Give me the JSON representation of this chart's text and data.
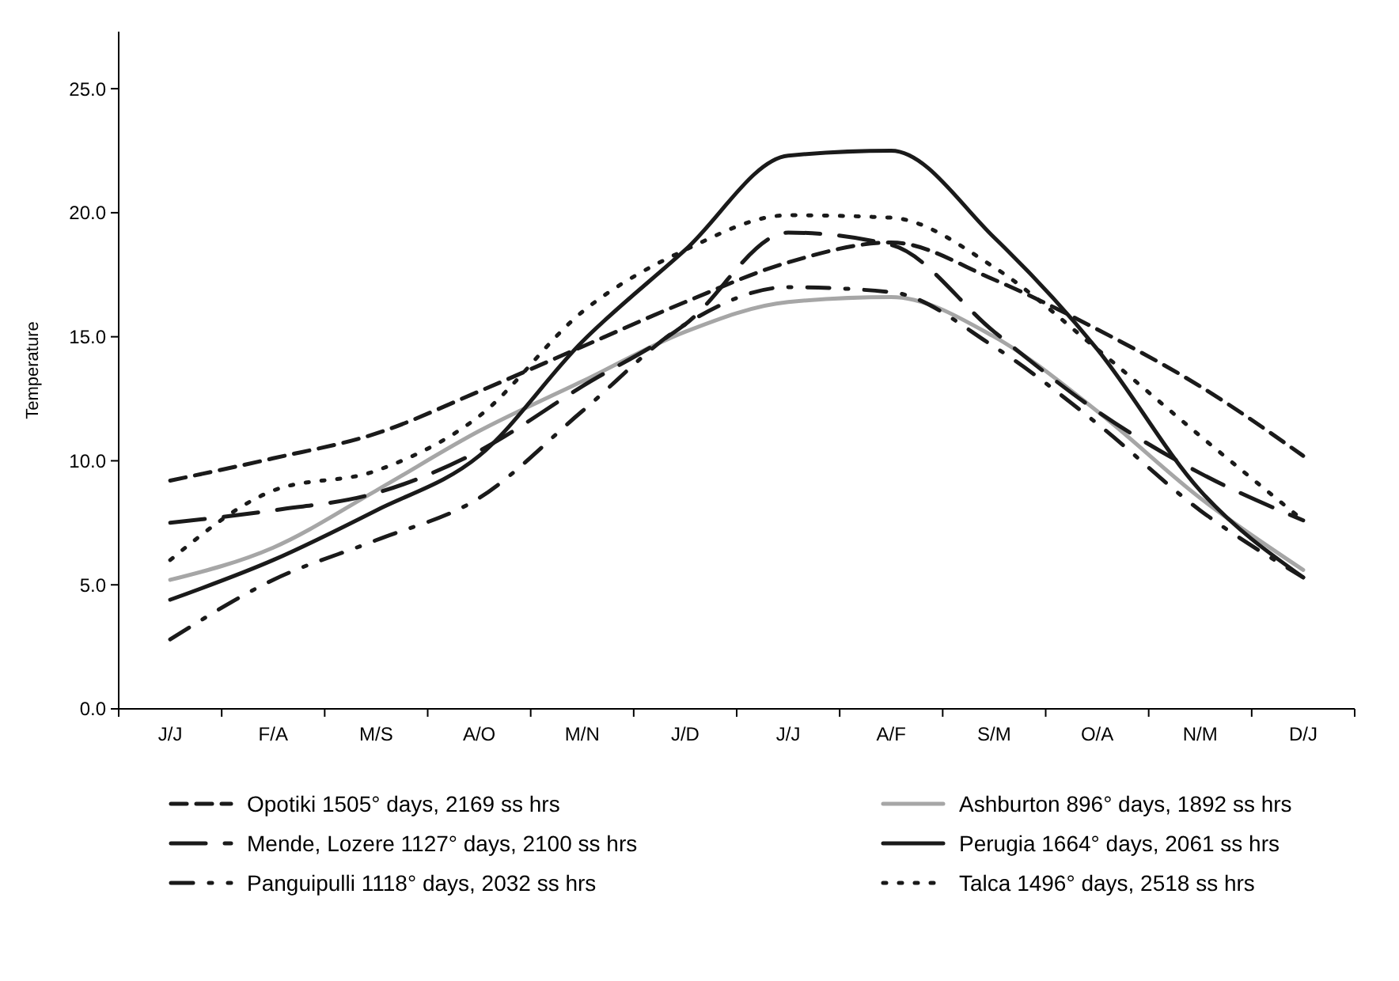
{
  "chart_data": {
    "type": "line",
    "ylabel": "Temperature",
    "categories": [
      "J/J",
      "F/A",
      "M/S",
      "A/O",
      "M/N",
      "J/D",
      "J/J",
      "A/F",
      "S/M",
      "O/A",
      "N/M",
      "D/J"
    ],
    "ylim": [
      0,
      27.3
    ],
    "yticks": [
      {
        "value": 0,
        "label": "0.0"
      },
      {
        "value": 5,
        "label": "5.0"
      },
      {
        "value": 10,
        "label": "10.0"
      },
      {
        "value": 15,
        "label": "15.0"
      },
      {
        "value": 20,
        "label": "20.0"
      },
      {
        "value": 25,
        "label": "25.0"
      }
    ],
    "grid": false,
    "legend": "bottom",
    "marker": "none",
    "series": [
      {
        "name": "Opotiki 1505° days, 2169 ss hrs",
        "color": "#1a1a1a",
        "line_style": "dashed",
        "values": [
          9.2,
          10.1,
          11.1,
          12.8,
          14.6,
          16.4,
          18.0,
          18.8,
          17.3,
          15.3,
          13.0,
          10.2
        ]
      },
      {
        "name": "Ashburton  896° days, 1892 ss hrs",
        "color": "#a6a6a6",
        "line_style": "solid",
        "values": [
          5.2,
          6.5,
          8.8,
          11.2,
          13.2,
          15.2,
          16.4,
          16.6,
          15.0,
          12.0,
          8.5,
          5.6
        ]
      },
      {
        "name": "Mende, Lozere 1127° days, 2100 ss hrs",
        "color": "#1a1a1a",
        "line_style": "longdash",
        "values": [
          7.5,
          8.0,
          8.7,
          10.4,
          13.0,
          15.5,
          19.2,
          18.7,
          15.2,
          12.0,
          9.5,
          7.6
        ]
      },
      {
        "name": "Perugia 1664° days, 2061 ss hrs",
        "color": "#1a1a1a",
        "line_style": "solid",
        "values": [
          4.4,
          6.0,
          8.0,
          10.2,
          14.8,
          18.5,
          22.3,
          22.5,
          19.0,
          14.5,
          8.8,
          5.3
        ]
      },
      {
        "name": "Panguipulli 1118° days, 2032 ss hrs",
        "color": "#1a1a1a",
        "line_style": "dashdot",
        "values": [
          2.8,
          5.2,
          6.8,
          8.5,
          12.0,
          15.5,
          17.0,
          16.8,
          14.6,
          11.5,
          8.0,
          5.3
        ]
      },
      {
        "name": "Talca 1496° days, 2518 ss hrs",
        "color": "#1a1a1a",
        "line_style": "dotted",
        "values": [
          6.0,
          8.8,
          9.6,
          11.8,
          16.0,
          18.5,
          19.9,
          19.8,
          17.8,
          14.5,
          11.0,
          7.6
        ]
      }
    ]
  }
}
